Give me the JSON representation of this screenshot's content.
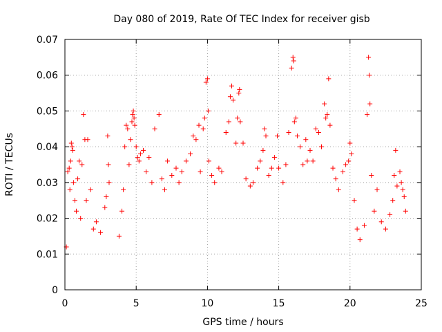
{
  "chart_data": {
    "type": "scatter",
    "title": "Day 080 of 2019, Rate Of TEC Index for receiver gisb",
    "xlabel": "GPS time / hours",
    "ylabel": "ROTI / TECUs",
    "xlim": [
      0,
      25
    ],
    "ylim": [
      0,
      0.07
    ],
    "x_ticks": [
      0,
      5,
      10,
      15,
      20,
      25
    ],
    "y_ticks": [
      0,
      0.01,
      0.02,
      0.03,
      0.04,
      0.05,
      0.06,
      0.07
    ],
    "x_tick_labels": [
      "0",
      "5",
      "10",
      "15",
      "20",
      "25"
    ],
    "y_tick_labels": [
      "0",
      "0.01",
      "0.02",
      "0.03",
      "0.04",
      "0.05",
      "0.06",
      "0.07"
    ],
    "grid": true,
    "marker": "plus",
    "color": "#ff0000",
    "series": [
      {
        "name": "ROTI",
        "points": [
          [
            0.1,
            0.012
          ],
          [
            0.2,
            0.033
          ],
          [
            0.3,
            0.034
          ],
          [
            0.35,
            0.028
          ],
          [
            0.4,
            0.036
          ],
          [
            0.45,
            0.041
          ],
          [
            0.5,
            0.04
          ],
          [
            0.55,
            0.039
          ],
          [
            0.6,
            0.03
          ],
          [
            0.7,
            0.025
          ],
          [
            0.8,
            0.022
          ],
          [
            0.9,
            0.031
          ],
          [
            1.0,
            0.036
          ],
          [
            1.1,
            0.02
          ],
          [
            1.2,
            0.035
          ],
          [
            1.3,
            0.049
          ],
          [
            1.4,
            0.042
          ],
          [
            1.5,
            0.025
          ],
          [
            1.6,
            0.042
          ],
          [
            1.8,
            0.028
          ],
          [
            2.0,
            0.017
          ],
          [
            2.2,
            0.019
          ],
          [
            2.5,
            0.016
          ],
          [
            2.8,
            0.023
          ],
          [
            2.9,
            0.026
          ],
          [
            3.0,
            0.043
          ],
          [
            3.05,
            0.035
          ],
          [
            3.1,
            0.03
          ],
          [
            3.8,
            0.015
          ],
          [
            4.0,
            0.022
          ],
          [
            4.1,
            0.028
          ],
          [
            4.2,
            0.04
          ],
          [
            4.3,
            0.046
          ],
          [
            4.4,
            0.045
          ],
          [
            4.5,
            0.035
          ],
          [
            4.6,
            0.042
          ],
          [
            4.7,
            0.047
          ],
          [
            4.75,
            0.049
          ],
          [
            4.8,
            0.05
          ],
          [
            4.85,
            0.048
          ],
          [
            4.9,
            0.046
          ],
          [
            5.0,
            0.04
          ],
          [
            5.1,
            0.037
          ],
          [
            5.2,
            0.036
          ],
          [
            5.3,
            0.038
          ],
          [
            5.5,
            0.039
          ],
          [
            5.7,
            0.033
          ],
          [
            5.9,
            0.037
          ],
          [
            6.1,
            0.03
          ],
          [
            6.3,
            0.045
          ],
          [
            6.6,
            0.049
          ],
          [
            6.8,
            0.031
          ],
          [
            7.0,
            0.028
          ],
          [
            7.2,
            0.036
          ],
          [
            7.5,
            0.032
          ],
          [
            7.8,
            0.034
          ],
          [
            8.0,
            0.03
          ],
          [
            8.2,
            0.033
          ],
          [
            8.5,
            0.036
          ],
          [
            8.8,
            0.038
          ],
          [
            9.0,
            0.043
          ],
          [
            9.2,
            0.042
          ],
          [
            9.4,
            0.046
          ],
          [
            9.5,
            0.033
          ],
          [
            9.7,
            0.045
          ],
          [
            9.8,
            0.048
          ],
          [
            9.9,
            0.058
          ],
          [
            10.0,
            0.059
          ],
          [
            10.05,
            0.05
          ],
          [
            10.1,
            0.036
          ],
          [
            10.3,
            0.032
          ],
          [
            10.5,
            0.03
          ],
          [
            10.8,
            0.034
          ],
          [
            11.0,
            0.033
          ],
          [
            11.3,
            0.044
          ],
          [
            11.5,
            0.047
          ],
          [
            11.6,
            0.054
          ],
          [
            11.7,
            0.057
          ],
          [
            11.8,
            0.053
          ],
          [
            12.0,
            0.041
          ],
          [
            12.1,
            0.048
          ],
          [
            12.2,
            0.055
          ],
          [
            12.25,
            0.056
          ],
          [
            12.3,
            0.047
          ],
          [
            12.5,
            0.041
          ],
          [
            12.7,
            0.031
          ],
          [
            13.0,
            0.029
          ],
          [
            13.2,
            0.03
          ],
          [
            13.5,
            0.034
          ],
          [
            13.7,
            0.036
          ],
          [
            13.9,
            0.039
          ],
          [
            14.0,
            0.045
          ],
          [
            14.1,
            0.043
          ],
          [
            14.3,
            0.032
          ],
          [
            14.5,
            0.034
          ],
          [
            14.7,
            0.037
          ],
          [
            14.9,
            0.043
          ],
          [
            15.0,
            0.034
          ],
          [
            15.3,
            0.03
          ],
          [
            15.5,
            0.035
          ],
          [
            15.7,
            0.044
          ],
          [
            15.9,
            0.062
          ],
          [
            16.0,
            0.065
          ],
          [
            16.05,
            0.064
          ],
          [
            16.1,
            0.047
          ],
          [
            16.2,
            0.048
          ],
          [
            16.3,
            0.043
          ],
          [
            16.5,
            0.04
          ],
          [
            16.7,
            0.035
          ],
          [
            16.9,
            0.042
          ],
          [
            17.0,
            0.036
          ],
          [
            17.2,
            0.039
          ],
          [
            17.4,
            0.036
          ],
          [
            17.6,
            0.045
          ],
          [
            17.8,
            0.044
          ],
          [
            18.0,
            0.04
          ],
          [
            18.2,
            0.052
          ],
          [
            18.3,
            0.048
          ],
          [
            18.4,
            0.049
          ],
          [
            18.5,
            0.059
          ],
          [
            18.6,
            0.046
          ],
          [
            18.8,
            0.034
          ],
          [
            19.0,
            0.031
          ],
          [
            19.2,
            0.028
          ],
          [
            19.5,
            0.033
          ],
          [
            19.7,
            0.035
          ],
          [
            19.9,
            0.036
          ],
          [
            20.0,
            0.041
          ],
          [
            20.1,
            0.038
          ],
          [
            20.3,
            0.025
          ],
          [
            20.5,
            0.017
          ],
          [
            20.7,
            0.014
          ],
          [
            21.0,
            0.018
          ],
          [
            21.2,
            0.049
          ],
          [
            21.3,
            0.065
          ],
          [
            21.35,
            0.06
          ],
          [
            21.4,
            0.052
          ],
          [
            21.5,
            0.032
          ],
          [
            21.7,
            0.022
          ],
          [
            21.9,
            0.028
          ],
          [
            22.2,
            0.019
          ],
          [
            22.5,
            0.017
          ],
          [
            22.8,
            0.021
          ],
          [
            23.0,
            0.025
          ],
          [
            23.1,
            0.032
          ],
          [
            23.2,
            0.039
          ],
          [
            23.3,
            0.029
          ],
          [
            23.5,
            0.033
          ],
          [
            23.6,
            0.03
          ],
          [
            23.7,
            0.028
          ],
          [
            23.8,
            0.026
          ],
          [
            23.9,
            0.022
          ]
        ]
      }
    ]
  }
}
